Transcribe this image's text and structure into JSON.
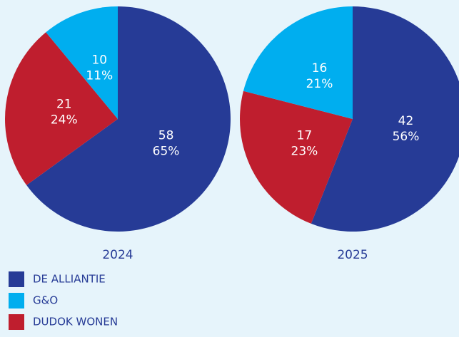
{
  "chart_data": [
    {
      "type": "pie",
      "title": "2024",
      "categories": [
        "DE ALLIANTIE",
        "G&O",
        "DUDOK WONEN"
      ],
      "colors": [
        "#263b96",
        "#00aeef",
        "#bf1e2e"
      ],
      "values": [
        65,
        11,
        24
      ],
      "value_labels": [
        "65%",
        "11%",
        "24%"
      ],
      "counts": [
        58,
        10,
        21
      ]
    },
    {
      "type": "pie",
      "title": "2025",
      "categories": [
        "DE ALLIANTIE",
        "G&O",
        "DUDOK WONEN"
      ],
      "colors": [
        "#263b96",
        "#00aeef",
        "#bf1e2e"
      ],
      "values": [
        56,
        21,
        23
      ],
      "value_labels": [
        "56%",
        "21%",
        "23%"
      ],
      "counts": [
        42,
        16,
        17
      ]
    }
  ]
}
